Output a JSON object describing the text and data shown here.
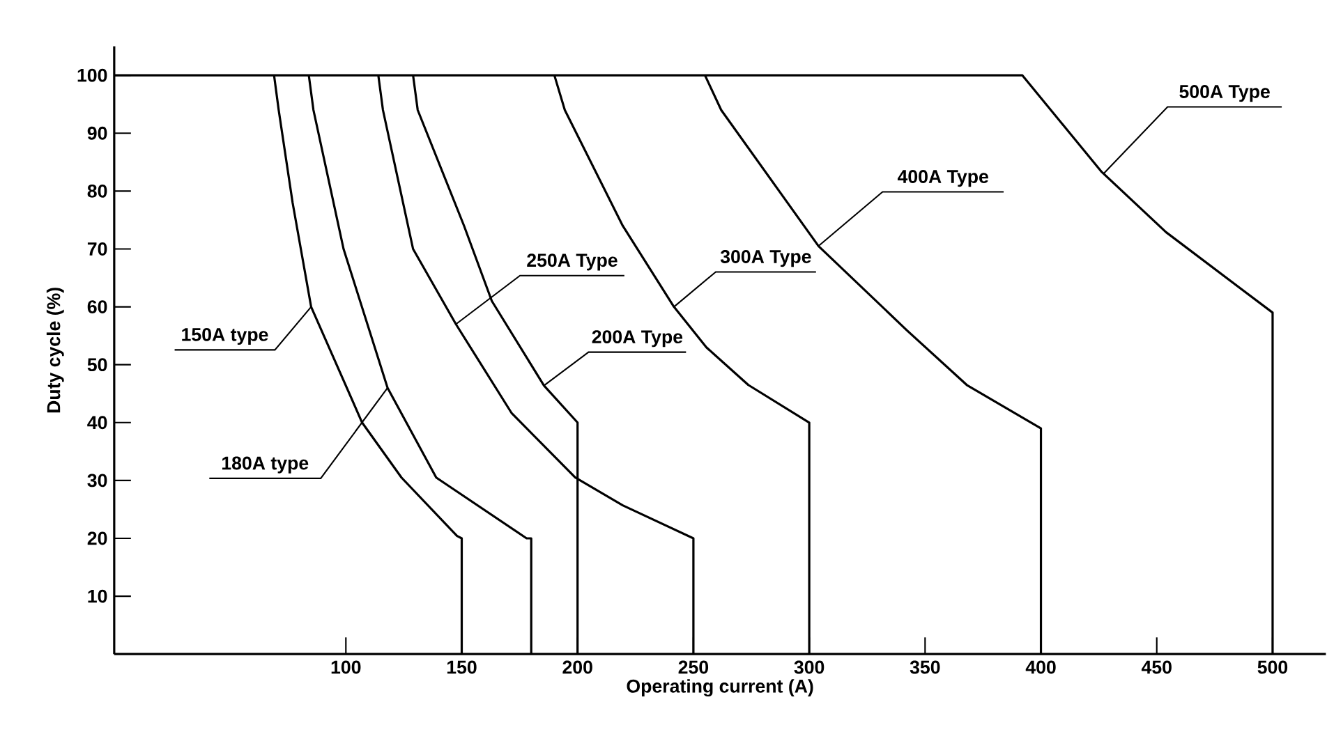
{
  "chart_data": {
    "type": "line",
    "xlabel": "Operating current (A)",
    "ylabel": "Duty cycle (%)",
    "xlim": [
      0,
      523
    ],
    "ylim": [
      0,
      105
    ],
    "xticks": [
      100,
      150,
      200,
      250,
      300,
      350,
      400,
      450,
      500
    ],
    "yticks": [
      10,
      20,
      30,
      40,
      50,
      60,
      70,
      80,
      90,
      100
    ],
    "grid": false,
    "marker": "none",
    "series": [
      {
        "color": "#000000",
        "x": [
          69,
          71,
          77,
          85,
          107,
          124,
          148,
          150,
          150
        ],
        "values": [
          100,
          94,
          78,
          60,
          40,
          30.5,
          20.4,
          20,
          0
        ]
      },
      {
        "color": "#000000",
        "x": [
          84,
          86,
          99,
          118,
          139,
          178,
          180,
          180
        ],
        "values": [
          100,
          94,
          70,
          46,
          30.5,
          20,
          20,
          0
        ]
      },
      {
        "color": "#000000",
        "x": [
          114,
          116,
          129,
          147.5,
          171.6,
          199,
          219.5,
          250,
          250
        ],
        "values": [
          100,
          94,
          70,
          57,
          41.6,
          30.5,
          25.7,
          20,
          0
        ]
      },
      {
        "color": "#000000",
        "x": [
          129,
          131,
          151,
          163,
          185.5,
          200,
          200
        ],
        "values": [
          100,
          94,
          74,
          61,
          46.4,
          40,
          0
        ]
      },
      {
        "color": "#000000",
        "x": [
          190,
          194.5,
          219.5,
          241.6,
          255.6,
          273.7,
          300,
          300
        ],
        "values": [
          100,
          94,
          74,
          60,
          53,
          46.5,
          40,
          0
        ]
      },
      {
        "color": "#000000",
        "x": [
          255,
          262,
          304,
          342,
          368,
          400,
          400
        ],
        "values": [
          100,
          94,
          70.5,
          56,
          46.5,
          39,
          0
        ]
      },
      {
        "color": "#000000",
        "x": [
          0,
          392,
          426,
          454,
          500,
          500
        ],
        "values": [
          100,
          100,
          83.4,
          72.9,
          59,
          0
        ]
      }
    ],
    "annotations": [
      {
        "text": "150A type",
        "x": 85,
        "y": 60
      },
      {
        "text": "180A type",
        "x": 118,
        "y": 46
      },
      {
        "text": "250A Type",
        "x": 147.5,
        "y": 57
      },
      {
        "text": "200A Type",
        "x": 185.5,
        "y": 46.4
      },
      {
        "text": "300A Type",
        "x": 241.6,
        "y": 60
      },
      {
        "text": "400A Type",
        "x": 304,
        "y": 70.5
      },
      {
        "text": "500A Type",
        "x": 427,
        "y": 83
      }
    ]
  }
}
